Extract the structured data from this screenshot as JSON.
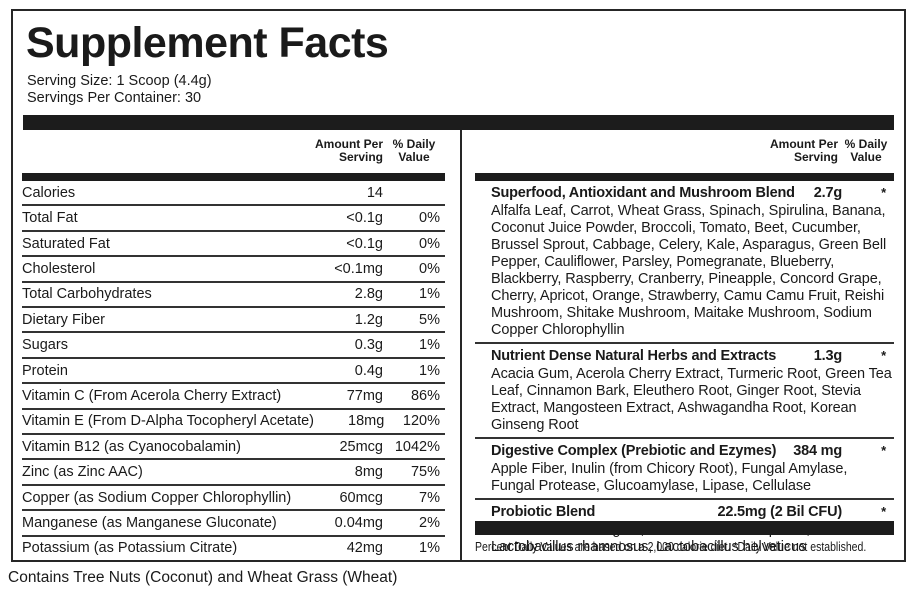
{
  "title": "Supplement Facts",
  "serving": {
    "size": "Serving Size: 1 Scoop (4.4g)",
    "per_container": "Servings Per Container: 30"
  },
  "columns": {
    "amount_header": "Amount Per Serving",
    "dv_header": "% Daily Value"
  },
  "nutrients": {
    "rows": [
      {
        "name": "Calories",
        "amount": "14",
        "dv": ""
      },
      {
        "name": "Total Fat",
        "amount": "<0.1g",
        "dv": "0%"
      },
      {
        "name": "Saturated Fat",
        "amount": "<0.1g",
        "dv": "0%"
      },
      {
        "name": "Cholesterol",
        "amount": "<0.1mg",
        "dv": "0%"
      },
      {
        "name": "Total Carbohydrates",
        "amount": "2.8g",
        "dv": "1%"
      },
      {
        "name": "Dietary Fiber",
        "amount": "1.2g",
        "dv": "5%"
      },
      {
        "name": "Sugars",
        "amount": "0.3g",
        "dv": "1%"
      },
      {
        "name": "Protein",
        "amount": "0.4g",
        "dv": "1%"
      },
      {
        "name": "Vitamin C (From Acerola Cherry Extract)",
        "amount": "77mg",
        "dv": "86%"
      },
      {
        "name": "Vitamin E (From D-Alpha Tocopheryl Acetate)",
        "amount": "18mg",
        "dv": "120%"
      },
      {
        "name": "Vitamin B12 (as Cyanocobalamin)",
        "amount": "25mcg",
        "dv": "1042%"
      },
      {
        "name": "Zinc (as Zinc AAC)",
        "amount": "8mg",
        "dv": "75%"
      },
      {
        "name": "Copper (as Sodium Copper Chlorophyllin)",
        "amount": "60mcg",
        "dv": "7%"
      },
      {
        "name": "Manganese (as Manganese Gluconate)",
        "amount": "0.04mg",
        "dv": "2%"
      },
      {
        "name": "Potassium (as Potassium Citrate)",
        "amount": "42mg",
        "dv": "1%"
      }
    ]
  },
  "blends": [
    {
      "name": "Superfood, Antioxidant and Mushroom Blend",
      "amount": "2.7g",
      "dv": "*",
      "ingredients": "Alfalfa Leaf, Carrot, Wheat Grass, Spinach, Spirulina, Banana, Coconut Juice Powder, Broccoli, Tomato, Beet, Cucumber, Brussel Sprout, Cabbage, Celery, Kale, Asparagus, Green Bell Pepper, Cauliflower, Parsley, Pomegranate, Blueberry, Blackberry, Raspberry, Cranberry, Pineapple, Concord Grape, Cherry, Apricot, Orange, Strawberry, Camu Camu Fruit, Reishi Mushroom, Shitake Mushroom, Maitake Mushroom, Sodium Copper Chlorophyllin"
    },
    {
      "name": "Nutrient Dense Natural Herbs and Extracts",
      "amount": "1.3g",
      "dv": "*",
      "ingredients": "Acacia Gum, Acerola Cherry Extract, Turmeric Root, Green Tea Leaf, Cinnamon Bark, Eleuthero Root, Ginger Root, Stevia Extract, Mangosteen Extract, Ashwagandha Root, Korean Ginseng Root"
    },
    {
      "name": "Digestive Complex (Prebiotic and Ezymes)",
      "amount": "384 mg",
      "dv": "*",
      "ingredients": "Apple Fiber, Inulin (from Chicory Root), Fungal Amylase, Fungal Protease, Glucoamylase, Lipase, Cellulase"
    },
    {
      "name": "Probiotic Blend",
      "amount": "22.5mg (2 Bil CFU)",
      "dv": "*",
      "ingredients": "Bifidobacterium longum, Lactobacillus acidophilus, Lactobacillus rhamnosus, Lactobacillus helveticus"
    }
  ],
  "footnote": "Percent Daily Values are based on a 2,000 calorie diet. *Daily Value not established.",
  "allergen": "Contains Tree Nuts (Coconut) and Wheat Grass (Wheat)"
}
